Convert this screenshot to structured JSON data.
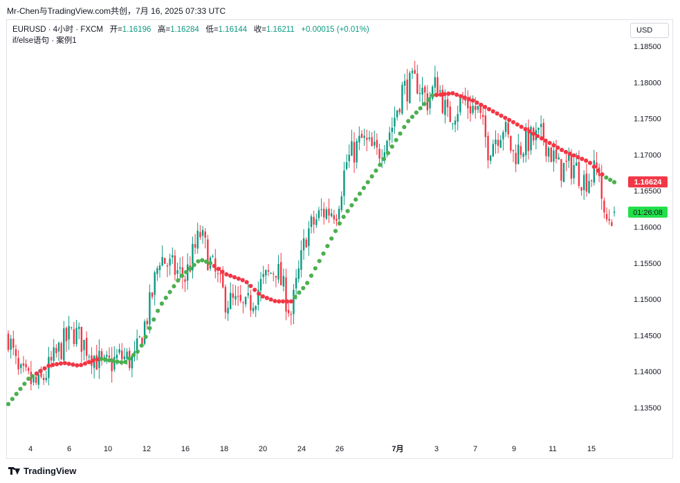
{
  "header": {
    "title": "Mr-Chen与TradingView.com共创，7月 16, 2025 07:33 UTC"
  },
  "legend": {
    "symbol": "EURUSD · 4小时 · FXCM",
    "open_label": "开=",
    "open": "1.16196",
    "high_label": "高=",
    "high": "1.16284",
    "low_label": "低=",
    "low": "1.16144",
    "close_label": "收=",
    "close": "1.16211",
    "change": "+0.00015 (+0.01%)",
    "indicator": "if/else语句 · 案例1"
  },
  "currency_button": "USD",
  "price_tag": {
    "value": "1.16624",
    "color": "#f23645"
  },
  "countdown_tag": {
    "value": "01:26:08",
    "color": "#22e04a"
  },
  "footer": {
    "brand": "TradingView"
  },
  "colors": {
    "up": "#089981",
    "down": "#f23645",
    "ma_up": "#4caf50",
    "ma_down": "#f23645"
  },
  "chart_data": {
    "type": "candlestick",
    "symbol": "EURUSD",
    "timeframe": "4h",
    "y_ticks": [
      "1.18500",
      "1.18000",
      "1.17500",
      "1.17000",
      "1.16500",
      "1.16000",
      "1.15500",
      "1.15000",
      "1.14500",
      "1.14000",
      "1.13500"
    ],
    "ylim": [
      1.1305,
      1.188
    ],
    "x_ticks": [
      "4",
      "6",
      "10",
      "12",
      "16",
      "18",
      "20",
      "24",
      "26",
      "7月",
      "3",
      "7",
      "9",
      "11",
      "15"
    ],
    "anchors": [
      {
        "t": 0,
        "p": 1.145
      },
      {
        "t": 4,
        "p": 1.1395
      },
      {
        "t": 12,
        "p": 1.138
      },
      {
        "t": 22,
        "p": 1.144
      },
      {
        "t": 26,
        "p": 1.1455
      },
      {
        "t": 38,
        "p": 1.1405
      },
      {
        "t": 44,
        "p": 1.142
      },
      {
        "t": 50,
        "p": 1.1415
      },
      {
        "t": 56,
        "p": 1.149
      },
      {
        "t": 60,
        "p": 1.156
      },
      {
        "t": 64,
        "p": 1.1545
      },
      {
        "t": 70,
        "p": 1.153
      },
      {
        "t": 76,
        "p": 1.159
      },
      {
        "t": 80,
        "p": 1.155
      },
      {
        "t": 86,
        "p": 1.15
      },
      {
        "t": 94,
        "p": 1.1485
      },
      {
        "t": 100,
        "p": 1.152
      },
      {
        "t": 106,
        "p": 1.1545
      },
      {
        "t": 112,
        "p": 1.148
      },
      {
        "t": 118,
        "p": 1.159
      },
      {
        "t": 124,
        "p": 1.162
      },
      {
        "t": 130,
        "p": 1.1625
      },
      {
        "t": 134,
        "p": 1.169
      },
      {
        "t": 140,
        "p": 1.172
      },
      {
        "t": 146,
        "p": 1.17
      },
      {
        "t": 152,
        "p": 1.174
      },
      {
        "t": 156,
        "p": 1.179
      },
      {
        "t": 162,
        "p": 1.18
      },
      {
        "t": 166,
        "p": 1.1775
      },
      {
        "t": 170,
        "p": 1.18
      },
      {
        "t": 174,
        "p": 1.175
      },
      {
        "t": 180,
        "p": 1.1775
      },
      {
        "t": 186,
        "p": 1.176
      },
      {
        "t": 190,
        "p": 1.171
      },
      {
        "t": 196,
        "p": 1.174
      },
      {
        "t": 200,
        "p": 1.17
      },
      {
        "t": 206,
        "p": 1.172
      },
      {
        "t": 212,
        "p": 1.1725
      },
      {
        "t": 218,
        "p": 1.168
      },
      {
        "t": 224,
        "p": 1.1685
      },
      {
        "t": 228,
        "p": 1.1665
      },
      {
        "t": 234,
        "p": 1.168
      },
      {
        "t": 236,
        "p": 1.1605
      },
      {
        "t": 240,
        "p": 1.1621
      }
    ],
    "moving_average": [
      {
        "t": 0,
        "p": 1.1355
      },
      {
        "t": 8,
        "p": 1.139
      },
      {
        "t": 16,
        "p": 1.1408
      },
      {
        "t": 22,
        "p": 1.1412
      },
      {
        "t": 28,
        "p": 1.1408
      },
      {
        "t": 36,
        "p": 1.1418
      },
      {
        "t": 46,
        "p": 1.1412
      },
      {
        "t": 52,
        "p": 1.143
      },
      {
        "t": 60,
        "p": 1.149
      },
      {
        "t": 68,
        "p": 1.153
      },
      {
        "t": 76,
        "p": 1.1555
      },
      {
        "t": 80,
        "p": 1.155
      },
      {
        "t": 86,
        "p": 1.1535
      },
      {
        "t": 94,
        "p": 1.1525
      },
      {
        "t": 100,
        "p": 1.1505
      },
      {
        "t": 106,
        "p": 1.1497
      },
      {
        "t": 112,
        "p": 1.1497
      },
      {
        "t": 118,
        "p": 1.152
      },
      {
        "t": 124,
        "p": 1.1558
      },
      {
        "t": 132,
        "p": 1.161
      },
      {
        "t": 140,
        "p": 1.165
      },
      {
        "t": 150,
        "p": 1.17
      },
      {
        "t": 158,
        "p": 1.1745
      },
      {
        "t": 168,
        "p": 1.1782
      },
      {
        "t": 176,
        "p": 1.1785
      },
      {
        "t": 184,
        "p": 1.1775
      },
      {
        "t": 192,
        "p": 1.176
      },
      {
        "t": 200,
        "p": 1.1745
      },
      {
        "t": 210,
        "p": 1.1725
      },
      {
        "t": 220,
        "p": 1.1705
      },
      {
        "t": 230,
        "p": 1.169
      },
      {
        "t": 236,
        "p": 1.167
      },
      {
        "t": 240,
        "p": 1.1662
      }
    ],
    "ma_down_ranges": [
      [
        10,
        36
      ],
      [
        80,
        112
      ],
      [
        168,
        236
      ]
    ]
  }
}
